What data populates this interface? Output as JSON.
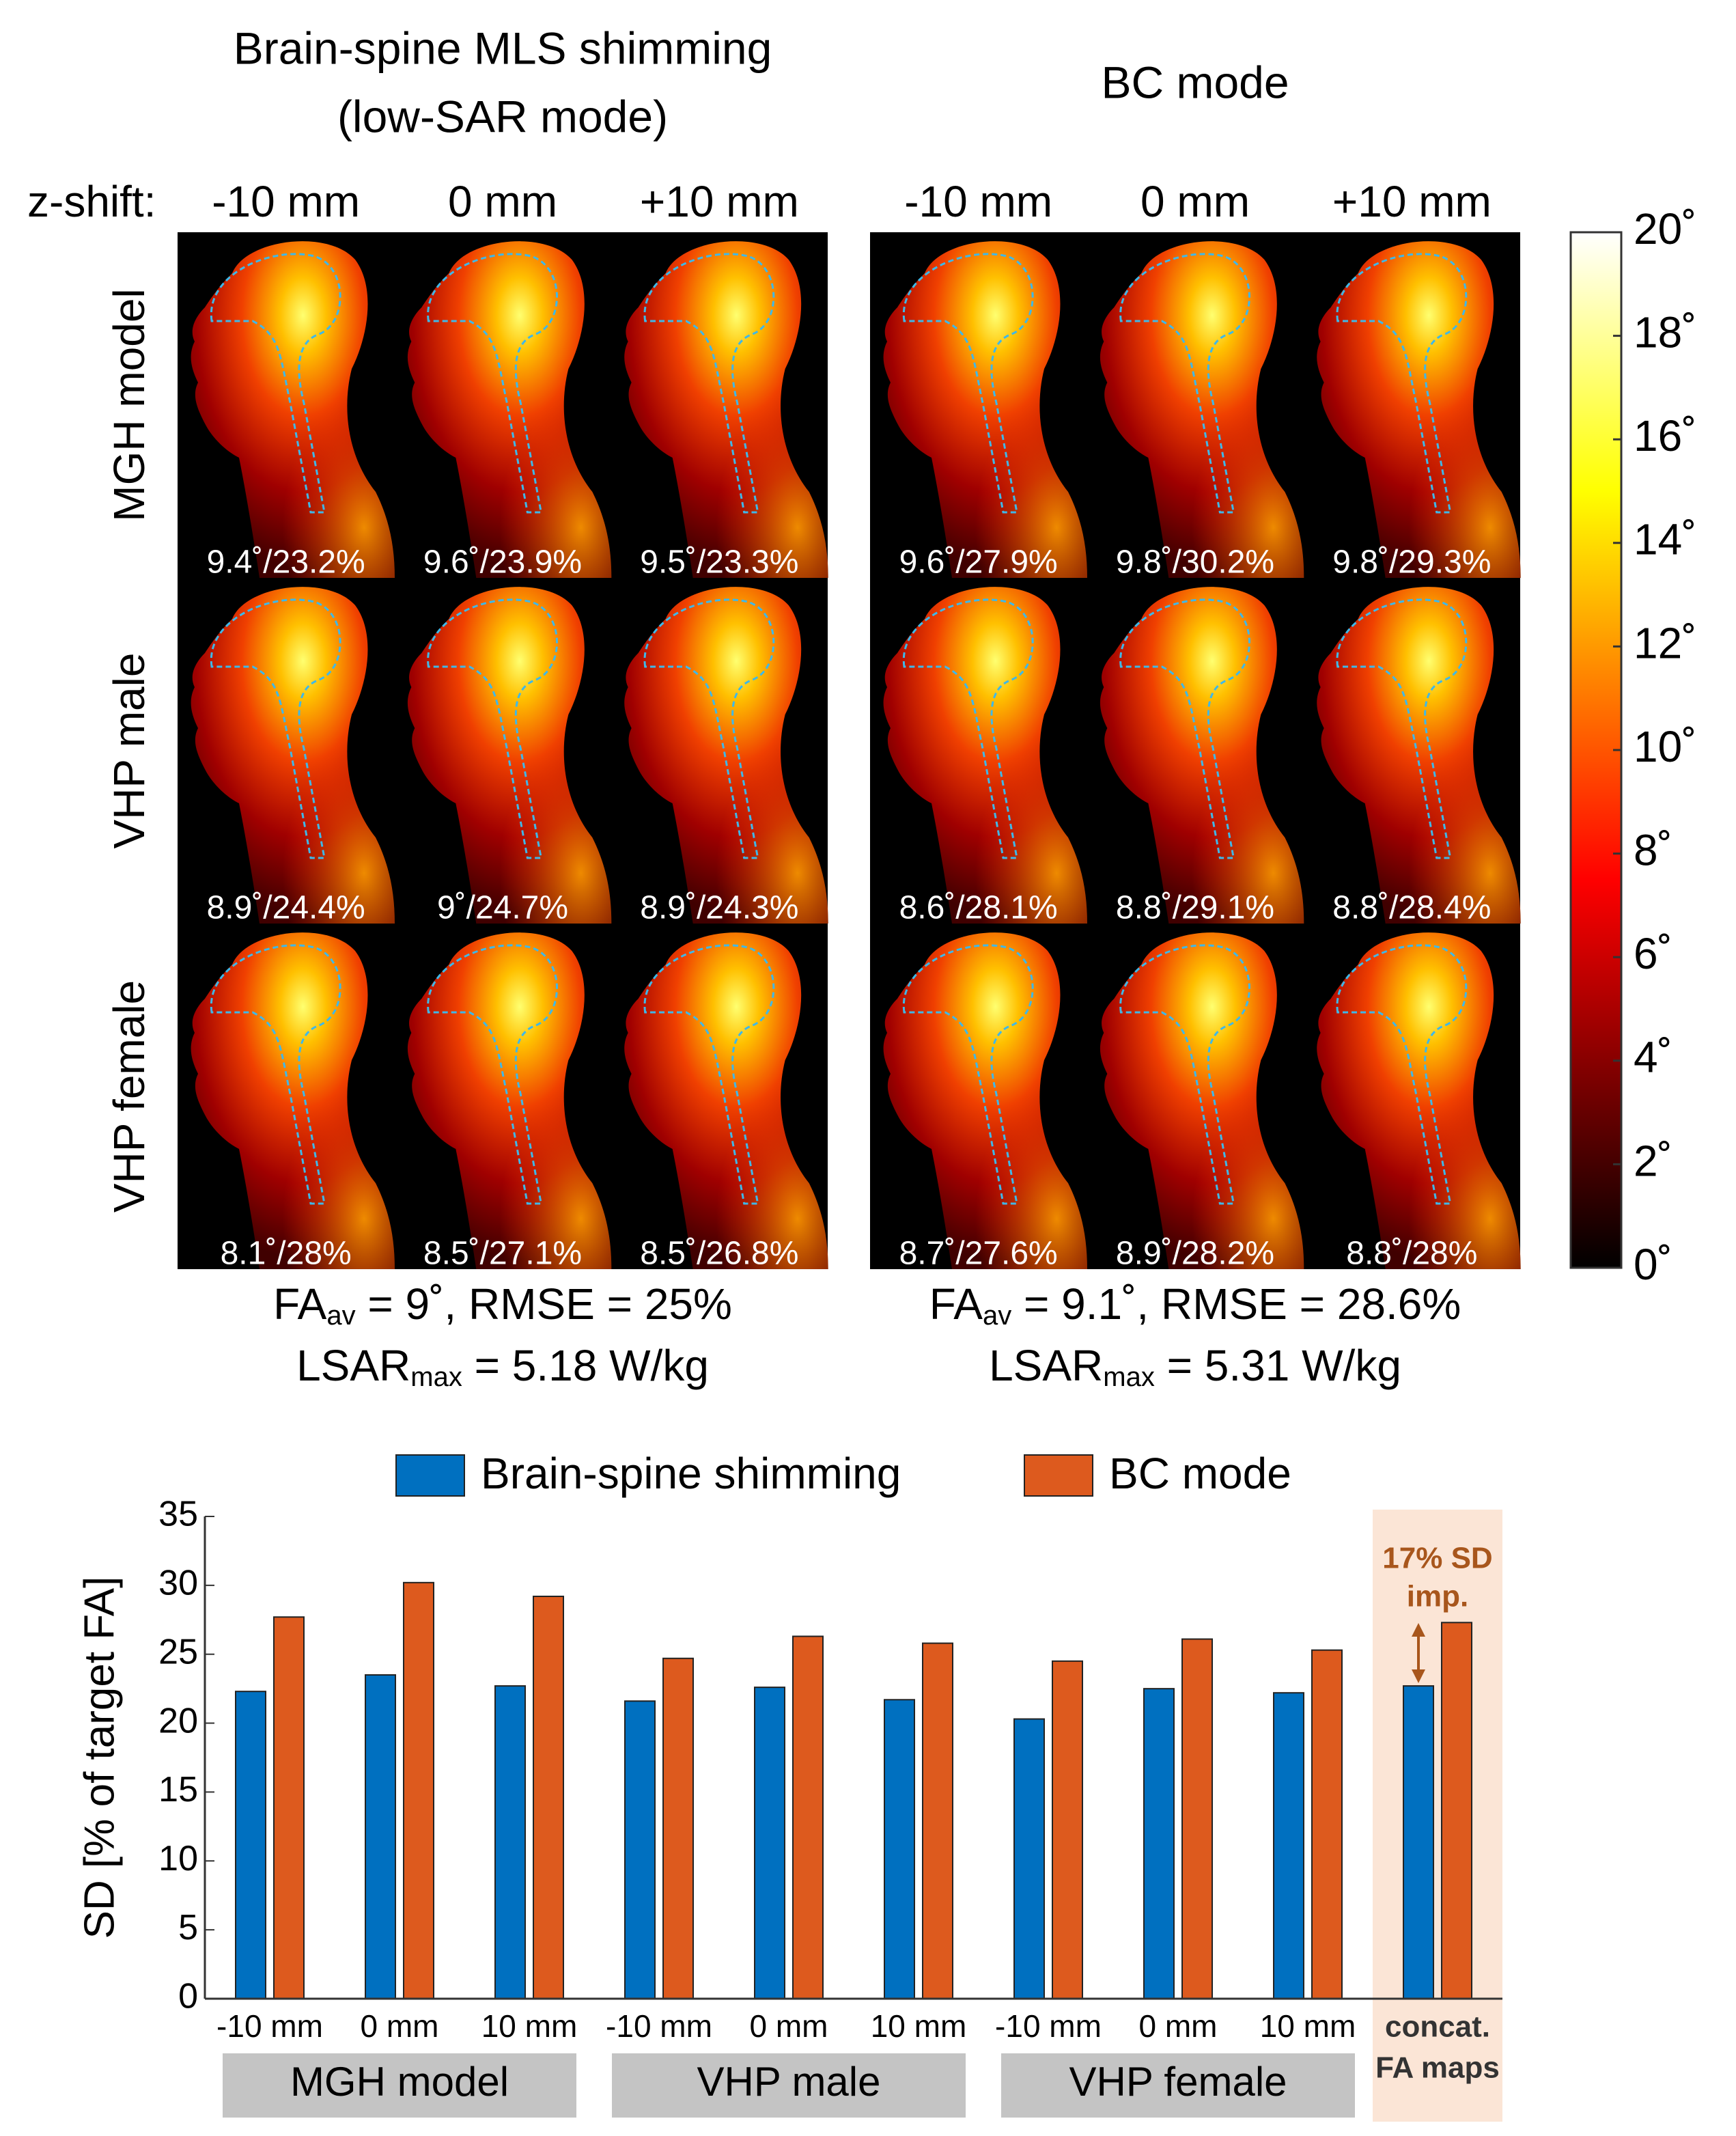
{
  "figure": {
    "z_shift_label": "z-shift:",
    "z_shifts": [
      "-10 mm",
      "0 mm",
      "+10 mm"
    ],
    "models": [
      "MGH model",
      "VHP male",
      "VHP female"
    ],
    "panels": [
      {
        "title_lines": [
          "Brain-spine MLS shimming",
          "(low-SAR mode)"
        ],
        "map_labels": [
          [
            "9.4˚/23.2%",
            "9.6˚/23.9%",
            "9.5˚/23.3%"
          ],
          [
            "8.9˚/24.4%",
            "9˚/24.7%",
            "8.9˚/24.3%"
          ],
          [
            "8.1˚/28%",
            "8.5˚/27.1%",
            "8.5˚/26.8%"
          ]
        ],
        "summary_lines": [
          {
            "main": "FA",
            "sub": "av",
            "rest": " = 9˚, RMSE = 25%"
          },
          {
            "main": "LSAR",
            "sub": "max",
            "rest": " = 5.18 W/kg"
          }
        ]
      },
      {
        "title_lines": [
          "BC mode"
        ],
        "map_labels": [
          [
            "9.6˚/27.9%",
            "9.8˚/30.2%",
            "9.8˚/29.3%"
          ],
          [
            "8.6˚/28.1%",
            "8.8˚/29.1%",
            "8.8˚/28.4%"
          ],
          [
            "8.7˚/27.6%",
            "8.9˚/28.2%",
            "8.8˚/28%"
          ]
        ],
        "summary_lines": [
          {
            "main": "FA",
            "sub": "av",
            "rest": " = 9.1˚, RMSE = 28.6%"
          },
          {
            "main": "LSAR",
            "sub": "max",
            "rest": " = 5.31 W/kg"
          }
        ]
      }
    ],
    "colorbar": {
      "lim": [
        0,
        20
      ],
      "ticks": [
        {
          "value": 0,
          "label": "0˚"
        },
        {
          "value": 2,
          "label": "2˚"
        },
        {
          "value": 4,
          "label": "4˚"
        },
        {
          "value": 6,
          "label": "6˚"
        },
        {
          "value": 8,
          "label": "8˚"
        },
        {
          "value": 10,
          "label": "10˚"
        },
        {
          "value": 12,
          "label": "12˚"
        },
        {
          "value": 14,
          "label": "14˚"
        },
        {
          "value": 16,
          "label": "16˚"
        },
        {
          "value": 18,
          "label": "18˚"
        },
        {
          "value": 20,
          "label": "20˚"
        }
      ]
    }
  },
  "chart_data": {
    "type": "bar",
    "ylabel": "SD [% of target FA]",
    "categories": [
      "-10 mm",
      "0 mm",
      "10 mm",
      "-10 mm",
      "0 mm",
      "10 mm",
      "-10 mm",
      "0 mm",
      "10 mm",
      "concat."
    ],
    "groups": [
      "MGH model",
      "VHP male",
      "VHP female",
      "FA maps"
    ],
    "series": [
      {
        "name": "Brain-spine shimming",
        "color": "#0070c0",
        "values": [
          22.3,
          23.5,
          22.7,
          21.6,
          22.6,
          21.7,
          20.3,
          22.5,
          22.2,
          22.7
        ]
      },
      {
        "name": "BC mode",
        "color": "#dd5a1e",
        "values": [
          27.7,
          30.2,
          29.2,
          24.7,
          26.3,
          25.8,
          24.5,
          26.1,
          25.3,
          27.3
        ]
      }
    ],
    "ylim": [
      0,
      35
    ],
    "yticks": [
      0,
      5,
      10,
      15,
      20,
      25,
      30,
      35
    ],
    "annotation_lines": [
      "17% SD",
      "imp."
    ],
    "annotation_color": "#a8561c",
    "highlight_color": "#fbe5d6",
    "group_color": "#c4c4c4"
  }
}
